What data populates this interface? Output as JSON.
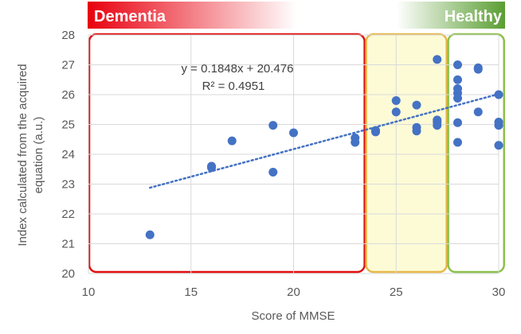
{
  "chart_data": {
    "type": "scatter",
    "title": "",
    "xlabel": "Score of MMSE",
    "ylabel_line1": "Index calculated from the acquired",
    "ylabel_line2": "equation (a.u.)",
    "xlim": [
      10,
      30
    ],
    "ylim": [
      20,
      28
    ],
    "xticks": [
      "10",
      "15",
      "20",
      "25",
      "30"
    ],
    "yticks": [
      "20",
      "21",
      "22",
      "23",
      "24",
      "25",
      "26",
      "27",
      "28"
    ],
    "grid": true,
    "legend": "none",
    "band": {
      "left_label": "Dementia",
      "right_label": "Healthy",
      "left_color": "#e8000e",
      "right_color": "#5a9e32"
    },
    "regions": [
      {
        "x0": 10,
        "x1": 23.5,
        "fill": "none",
        "stroke": "#e01010"
      },
      {
        "x0": 23.5,
        "x1": 27.5,
        "fill": "#fdfbd6",
        "stroke": "#e8b84a"
      },
      {
        "x0": 27.5,
        "x1": 30.3,
        "fill": "none",
        "stroke": "#8cc04a"
      }
    ],
    "series": [
      {
        "color": "#4472c4",
        "points": [
          [
            13,
            21.3
          ],
          [
            16,
            23.55
          ],
          [
            16,
            23.6
          ],
          [
            17,
            24.45
          ],
          [
            19,
            24.97
          ],
          [
            19,
            23.4
          ],
          [
            20,
            24.72
          ],
          [
            23,
            24.55
          ],
          [
            23,
            24.4
          ],
          [
            24,
            24.75
          ],
          [
            24,
            24.8
          ],
          [
            25,
            25.8
          ],
          [
            25,
            25.42
          ],
          [
            26,
            25.65
          ],
          [
            26,
            24.9
          ],
          [
            26,
            24.78
          ],
          [
            27,
            27.18
          ],
          [
            27,
            25.15
          ],
          [
            27,
            25.08
          ],
          [
            27,
            24.97
          ],
          [
            28,
            27.0
          ],
          [
            28,
            26.5
          ],
          [
            28,
            26.2
          ],
          [
            28,
            26.05
          ],
          [
            28,
            25.88
          ],
          [
            28,
            25.06
          ],
          [
            28,
            24.4
          ],
          [
            29,
            26.9
          ],
          [
            29,
            26.85
          ],
          [
            29,
            25.42
          ],
          [
            30,
            26.0
          ],
          [
            30,
            25.08
          ],
          [
            30,
            24.97
          ],
          [
            30,
            24.3
          ]
        ]
      }
    ],
    "trendline": {
      "slope": 0.1848,
      "intercept": 20.476,
      "x_range": [
        13,
        30
      ],
      "color": "#4472c4",
      "equation": "y = 0.1848x + 20.476",
      "r_squared": "R² = 0.4951"
    }
  }
}
